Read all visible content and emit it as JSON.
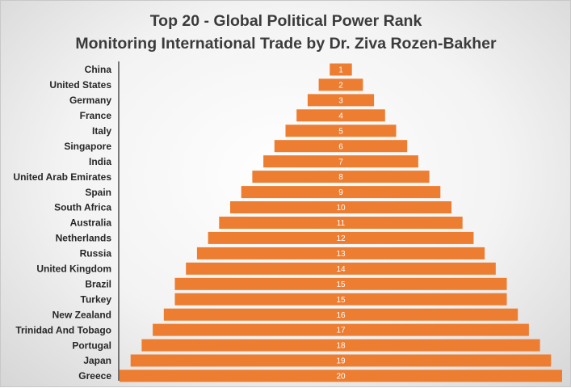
{
  "chart_data": {
    "type": "bar",
    "orientation": "horizontal",
    "title": "Top 20 - Global Political Power Rank",
    "subtitle": "Monitoring International Trade by Dr. Ziva Rozen-Bakher",
    "categories": [
      "China",
      "United States",
      "Germany",
      "France",
      "Italy",
      "Singapore",
      "India",
      "United Arab Emirates",
      "Spain",
      "South Africa",
      "Australia",
      "Netherlands",
      "Russia",
      "United Kingdom",
      "Brazil",
      "Turkey",
      "New Zealand",
      "Trinidad And Tobago",
      "Portugal",
      "Japan",
      "Greece"
    ],
    "values": [
      1,
      2,
      3,
      4,
      5,
      6,
      7,
      8,
      9,
      10,
      11,
      12,
      13,
      14,
      15,
      15,
      16,
      17,
      18,
      19,
      20
    ],
    "xlim": [
      0,
      20
    ],
    "centered": true,
    "grid": false,
    "legend": "none",
    "bar_color": "#ED7D31",
    "label_color": "#FFFFFF"
  }
}
